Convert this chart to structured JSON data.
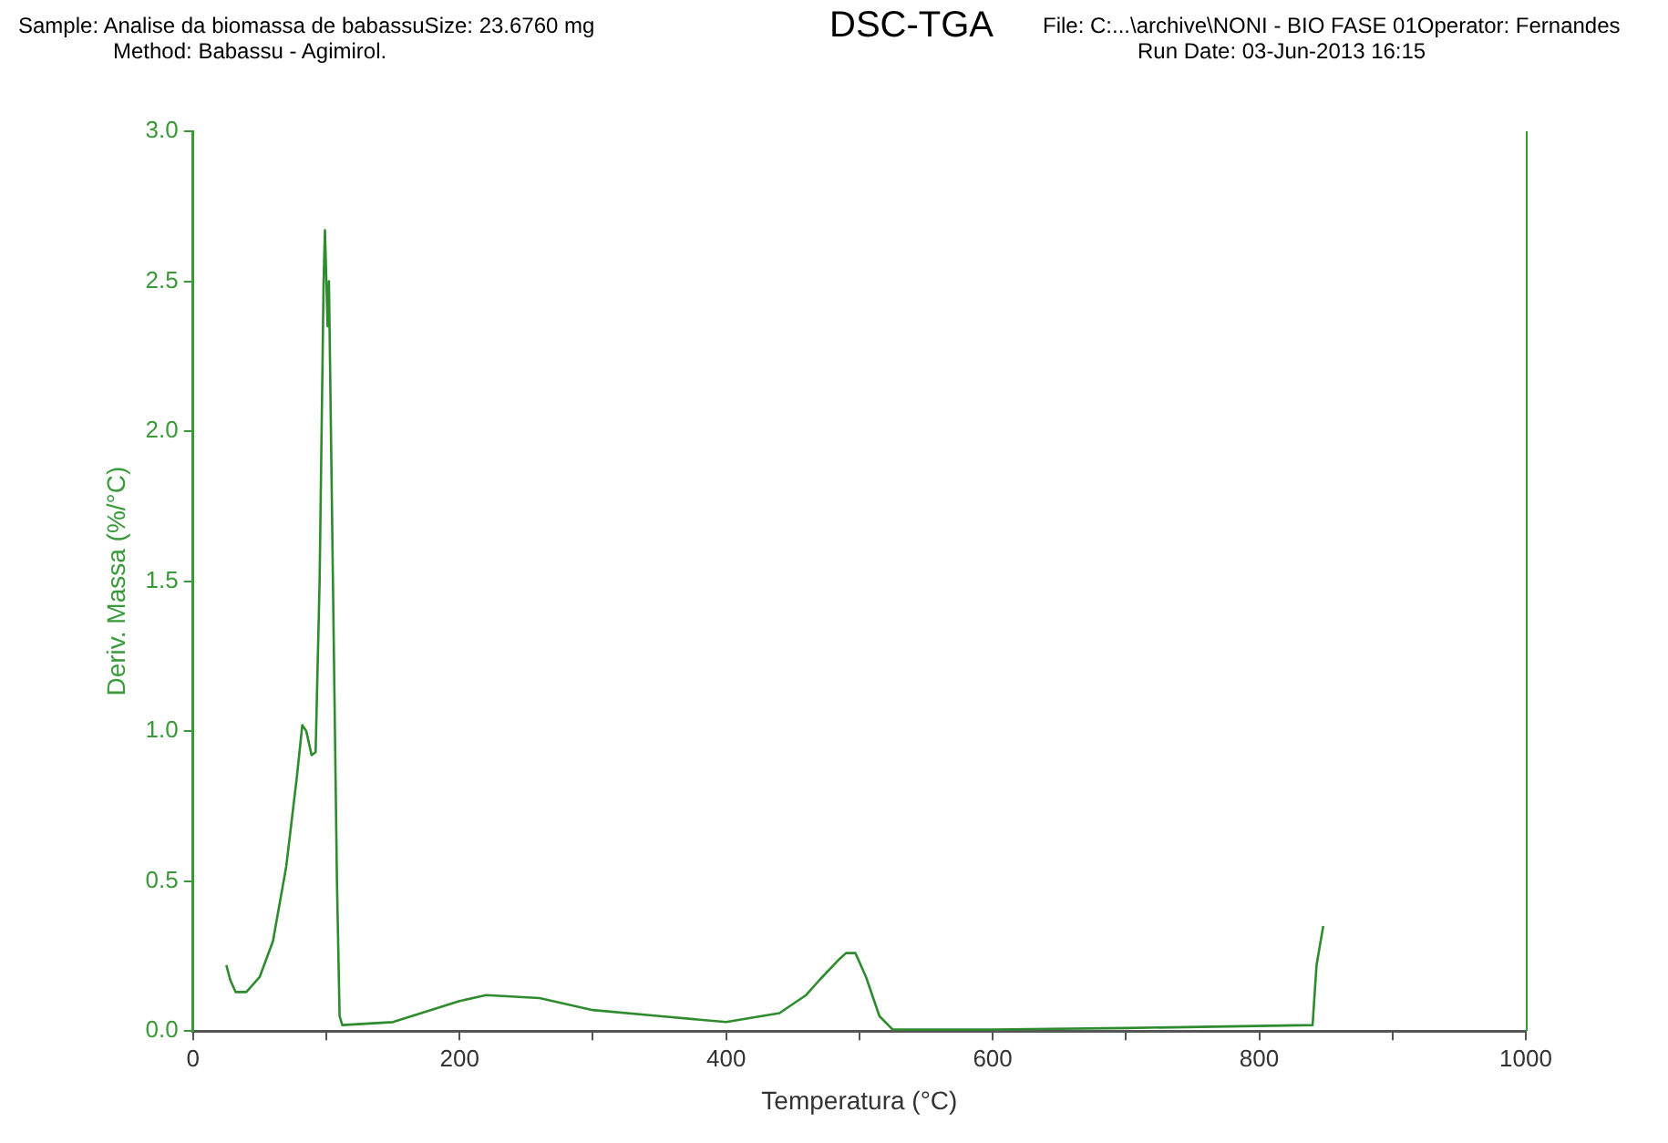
{
  "chart_data": {
    "type": "line",
    "title": "DSC-TGA",
    "xlabel": "Temperatura (°C)",
    "ylabel": "Deriv. Massa (%/°C)",
    "annotations": [
      "Sample: Analise da biomassa de babassuSize:  23.6760 mg",
      "Method: Babassu - Agimirol.",
      "File: C:...\\archive\\NONI - BIO FASE 01Operator: Fernandes",
      "Run Date: 03-Jun-2013 16:15"
    ],
    "series": [
      {
        "color": "#2e8b2e",
        "x": [
          25,
          28,
          32,
          40,
          50,
          60,
          70,
          78,
          82,
          85,
          89,
          92,
          95,
          98,
          99,
          101,
          102,
          105,
          108,
          110,
          112,
          150,
          200,
          220,
          260,
          300,
          350,
          400,
          440,
          460,
          470,
          485,
          490,
          497,
          505,
          515,
          525,
          600,
          700,
          840,
          843,
          848
        ],
        "values": [
          0.22,
          0.17,
          0.13,
          0.13,
          0.18,
          0.3,
          0.55,
          0.85,
          1.02,
          1.0,
          0.92,
          0.93,
          1.5,
          2.5,
          2.67,
          2.35,
          2.5,
          1.5,
          0.5,
          0.05,
          0.02,
          0.03,
          0.1,
          0.12,
          0.11,
          0.07,
          0.05,
          0.03,
          0.06,
          0.12,
          0.17,
          0.24,
          0.26,
          0.26,
          0.18,
          0.05,
          0.005,
          0.005,
          0.01,
          0.02,
          0.22,
          0.35
        ]
      }
    ],
    "xlim": [
      0,
      1000
    ],
    "xticks": [
      0,
      {
        "value": 100,
        "label": null
      },
      200,
      {
        "value": 300,
        "label": null
      },
      400,
      {
        "value": 500,
        "label": null
      },
      600,
      {
        "value": 700,
        "label": null
      },
      800,
      {
        "value": 900,
        "label": null
      },
      1000
    ],
    "ylim": [
      0,
      3
    ],
    "yticks": [
      {
        "value": 0,
        "label": "0.0"
      },
      {
        "value": 0.5,
        "label": "0.5"
      },
      {
        "value": 1,
        "label": "1.0"
      },
      {
        "value": 1.5,
        "label": "1.5"
      },
      {
        "value": 2,
        "label": "2.0"
      },
      {
        "value": 2.5,
        "label": "2.5"
      },
      {
        "value": 3,
        "label": "3.0"
      }
    ],
    "grid": false,
    "legend": false,
    "marker": "none",
    "line_style": "solid"
  }
}
